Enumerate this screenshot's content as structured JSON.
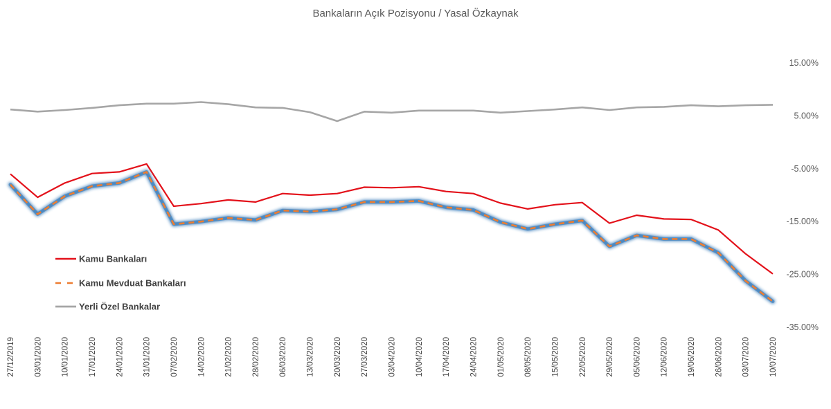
{
  "chart_data": {
    "type": "line",
    "title": "Bankaların Açık Pozisyonu / Yasal Özkaynak",
    "xlabel": "",
    "ylabel": "",
    "ylim": [
      -35,
      20
    ],
    "y_ticks": [
      15,
      5,
      -5,
      -15,
      -25,
      -35
    ],
    "y_tick_labels": [
      "15.00%",
      "5.00%",
      "-5.00%",
      "-15.00%",
      "-25.00%",
      "-35.00%"
    ],
    "y_axis_position": "right",
    "grid": false,
    "legend_position": "left",
    "categories": [
      "27/12/2019",
      "03/01/2020",
      "10/01/2020",
      "17/01/2020",
      "24/01/2020",
      "31/01/2020",
      "07/02/2020",
      "14/02/2020",
      "21/02/2020",
      "28/02/2020",
      "06/03/2020",
      "13/03/2020",
      "20/03/2020",
      "27/03/2020",
      "03/04/2020",
      "10/04/2020",
      "17/04/2020",
      "24/04/2020",
      "01/05/2020",
      "08/05/2020",
      "15/05/2020",
      "22/05/2020",
      "29/05/2020",
      "05/06/2020",
      "12/06/2020",
      "19/06/2020",
      "26/06/2020",
      "03/07/2020",
      "10/07/2020"
    ],
    "series": [
      {
        "name": "Kamu Bankaları",
        "color": "#e3111a",
        "style": "solid",
        "values": [
          -6.0,
          -10.4,
          -7.7,
          -5.9,
          -5.6,
          -4.1,
          -12.1,
          -11.6,
          -10.9,
          -11.3,
          -9.7,
          -10.0,
          -9.7,
          -8.5,
          -8.6,
          -8.4,
          -9.3,
          -9.7,
          -11.5,
          -12.6,
          -11.8,
          -11.4,
          -15.3,
          -13.8,
          -14.5,
          -14.6,
          -16.6,
          -21.1,
          -24.9
        ]
      },
      {
        "name": "Kamu Mevduat Bankaları",
        "color": "#ed7d31",
        "glow_color": "#2e75b6",
        "style": "dashed",
        "values": [
          -8.0,
          -13.6,
          -10.2,
          -8.3,
          -7.7,
          -5.6,
          -15.5,
          -15.0,
          -14.3,
          -14.7,
          -12.9,
          -13.1,
          -12.7,
          -11.3,
          -11.3,
          -11.1,
          -12.3,
          -12.8,
          -15.1,
          -16.4,
          -15.5,
          -14.8,
          -19.7,
          -17.6,
          -18.3,
          -18.3,
          -20.9,
          -26.2,
          -30.1
        ]
      },
      {
        "name": "Yerli Özel Bankalar",
        "color": "#a6a6a6",
        "style": "solid",
        "values": [
          6.2,
          5.8,
          6.1,
          6.5,
          7.0,
          7.3,
          7.3,
          7.6,
          7.2,
          6.6,
          6.5,
          5.7,
          4.0,
          5.8,
          5.6,
          6.0,
          6.0,
          6.0,
          5.6,
          5.9,
          6.2,
          6.6,
          6.1,
          6.6,
          6.7,
          7.0,
          6.8,
          7.0,
          7.1
        ]
      }
    ]
  }
}
